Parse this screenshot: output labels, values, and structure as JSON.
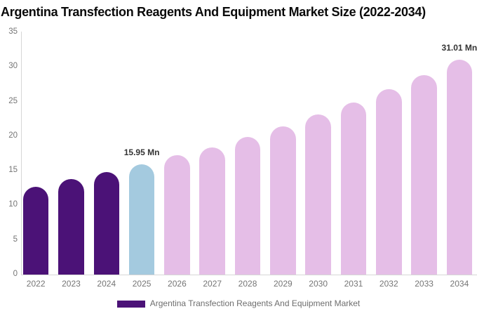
{
  "title": "Argentina Transfection Reagents And Equipment Market Size (2022-2034)",
  "legend": {
    "label": "Argentina Transfection Reagents And Equipment Market"
  },
  "colors": {
    "historical_bar": "#4B1277",
    "base_year_bar": "#A4CADF",
    "forecast_bar": "#E5BEE7",
    "axis_line": "#D6D6D6",
    "tick_label": "#757575",
    "value_label": "#333333",
    "title_text": "#0A0A0A",
    "legend_text": "#6E6E6E",
    "background": "#FFFFFF"
  },
  "chart_data": {
    "type": "bar",
    "title": "Argentina Transfection Reagents And Equipment Market Size (2022-2034)",
    "xlabel": "",
    "ylabel": "",
    "unit": "Mn",
    "categories": [
      "2022",
      "2023",
      "2024",
      "2025",
      "2026",
      "2027",
      "2028",
      "2029",
      "2030",
      "2031",
      "2032",
      "2033",
      "2034"
    ],
    "values": [
      12.7,
      13.8,
      14.8,
      15.95,
      17.2,
      18.4,
      19.9,
      21.4,
      23.1,
      24.9,
      26.8,
      28.8,
      31.01
    ],
    "bar_roles": [
      "historical",
      "historical",
      "historical",
      "base_year",
      "forecast",
      "forecast",
      "forecast",
      "forecast",
      "forecast",
      "forecast",
      "forecast",
      "forecast",
      "forecast"
    ],
    "data_labels": [
      {
        "index": 3,
        "text": "15.95 Mn"
      },
      {
        "index": 12,
        "text": "31.01 Mn"
      }
    ],
    "ylim": [
      0,
      35
    ],
    "yticks": [
      0,
      5,
      10,
      15,
      20,
      25,
      30,
      35
    ],
    "grid": false,
    "legend_position": "bottom"
  }
}
